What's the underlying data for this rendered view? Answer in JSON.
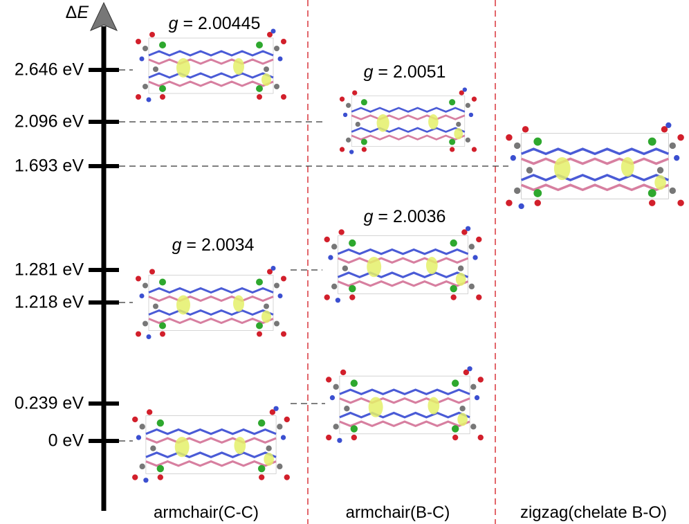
{
  "axis": {
    "symbol": "Δ",
    "variable": "E"
  },
  "levels": [
    "2.646 eV",
    "2.096 eV",
    "1.693 eV",
    "1.281 eV",
    "1.218 eV",
    "0.239 eV",
    "0 eV"
  ],
  "g_labels": [
    {
      "symbol": "g",
      "text": "= 2.00445"
    },
    {
      "symbol": "g",
      "text": "= 2.0051"
    },
    {
      "symbol": "g",
      "text": "= 2.0036"
    },
    {
      "symbol": "g",
      "text": "= 2.0034"
    }
  ],
  "columns": [
    "armchair(C-C)",
    "armchair(B-C)",
    "zigzag(chelate B-O)"
  ]
}
